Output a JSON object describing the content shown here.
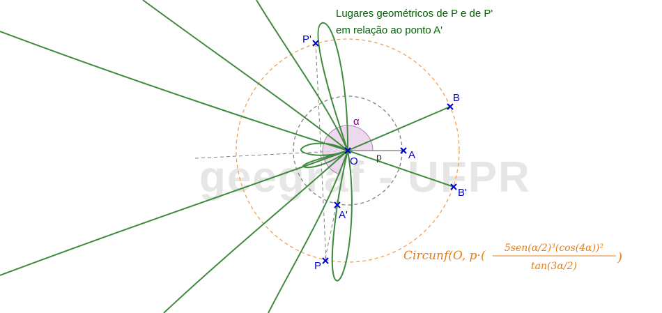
{
  "watermark": "geegraf - UFPR",
  "title": {
    "line1": "Lugares geométricos de P e de P'",
    "line2": "em relação ao ponto A'"
  },
  "points": {
    "O": "O",
    "A": "A",
    "A_prime": "A'",
    "B": "B",
    "B_prime": "B'",
    "P": "P",
    "P_prime": "P'"
  },
  "labels": {
    "alpha": "α",
    "p": "p"
  },
  "formula": {
    "prefix": "Circunf(O, p·(",
    "numerator": "5sen(α/2)³(cos(4α))²",
    "denominator": "tan(3α/2)",
    "suffix": ")"
  },
  "colors": {
    "curve": "#3f8a3f",
    "points": "#0000cc",
    "outer_circle": "#f0a050",
    "inner_circle": "#808080",
    "angle_fill": "#e8d0e8",
    "formula": "#e87d10",
    "title": "#006400"
  }
}
